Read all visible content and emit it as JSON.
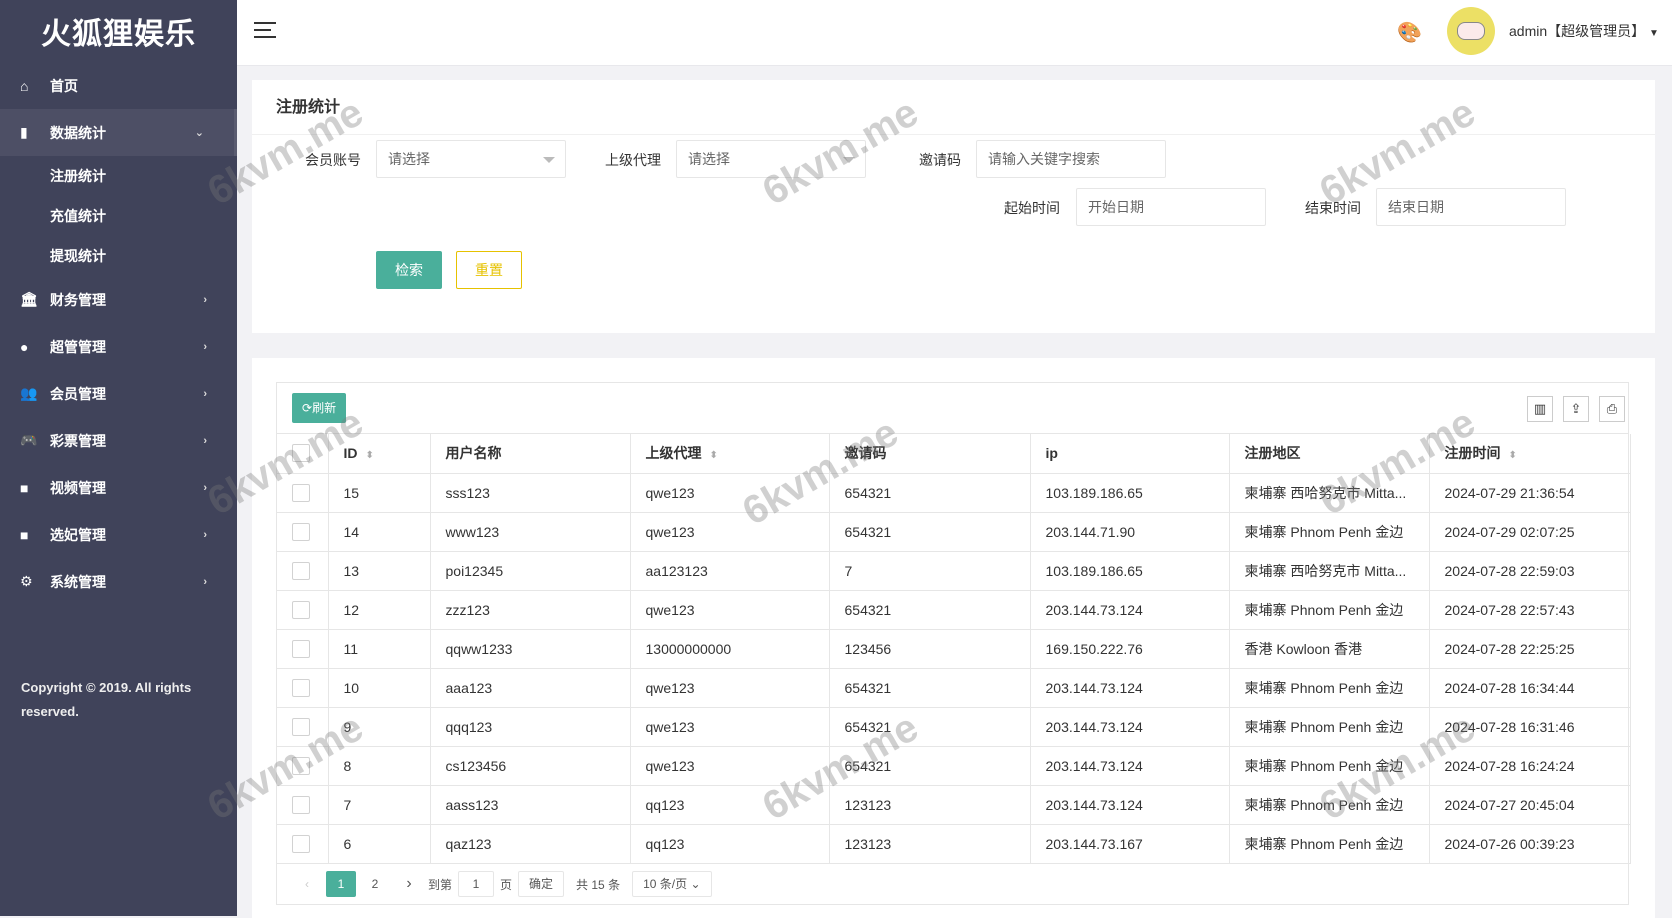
{
  "brand": "火狐狸娱乐",
  "sidebar": {
    "items": [
      {
        "label": "首页",
        "icon": "home-icon",
        "glyph": "⌂"
      },
      {
        "label": "数据统计",
        "icon": "bar-chart-icon",
        "glyph": "▮",
        "expanded": true,
        "children": [
          {
            "label": "注册统计"
          },
          {
            "label": "充值统计"
          },
          {
            "label": "提现统计"
          }
        ]
      },
      {
        "label": "财务管理",
        "icon": "bank-icon",
        "glyph": "🏛"
      },
      {
        "label": "超管管理",
        "icon": "user-icon",
        "glyph": "●"
      },
      {
        "label": "会员管理",
        "icon": "users-icon",
        "glyph": "👥"
      },
      {
        "label": "彩票管理",
        "icon": "gamepad-icon",
        "glyph": "🎮"
      },
      {
        "label": "视频管理",
        "icon": "video-icon",
        "glyph": "■"
      },
      {
        "label": "选妃管理",
        "icon": "video-icon",
        "glyph": "■"
      },
      {
        "label": "系统管理",
        "icon": "gear-icon",
        "glyph": "⚙"
      }
    ],
    "copyright": "Copyright © 2019. All rights reserved."
  },
  "header": {
    "user": "admin【超级管理员】"
  },
  "filter": {
    "title": "注册统计",
    "member_label": "会员账号",
    "member_placeholder": "请选择",
    "agent_label": "上级代理",
    "agent_placeholder": "请选择",
    "invite_label": "邀请码",
    "invite_placeholder": "请输入关键字搜索",
    "start_label": "起始时间",
    "start_placeholder": "开始日期",
    "end_label": "结束时间",
    "end_placeholder": "结束日期",
    "search": "检索",
    "reset": "重置"
  },
  "table": {
    "refresh": "刷新",
    "columns": [
      "ID",
      "用户名称",
      "上级代理",
      "邀请码",
      "ip",
      "注册地区",
      "注册时间"
    ],
    "rows": [
      [
        "15",
        "sss123",
        "qwe123",
        "654321",
        "103.189.186.65",
        "柬埔寨 西哈努克市 Mitta...",
        "2024-07-29 21:36:54"
      ],
      [
        "14",
        "www123",
        "qwe123",
        "654321",
        "203.144.71.90",
        "柬埔寨 Phnom Penh 金边",
        "2024-07-29 02:07:25"
      ],
      [
        "13",
        "poi12345",
        "aa123123",
        "7",
        "103.189.186.65",
        "柬埔寨 西哈努克市 Mitta...",
        "2024-07-28 22:59:03"
      ],
      [
        "12",
        "zzz123",
        "qwe123",
        "654321",
        "203.144.73.124",
        "柬埔寨 Phnom Penh 金边",
        "2024-07-28 22:57:43"
      ],
      [
        "11",
        "qqww1233",
        "13000000000",
        "123456",
        "169.150.222.76",
        "香港 Kowloon 香港",
        "2024-07-28 22:25:25"
      ],
      [
        "10",
        "aaa123",
        "qwe123",
        "654321",
        "203.144.73.124",
        "柬埔寨 Phnom Penh 金边",
        "2024-07-28 16:34:44"
      ],
      [
        "9",
        "qqq123",
        "qwe123",
        "654321",
        "203.144.73.124",
        "柬埔寨 Phnom Penh 金边",
        "2024-07-28 16:31:46"
      ],
      [
        "8",
        "cs123456",
        "qwe123",
        "654321",
        "203.144.73.124",
        "柬埔寨 Phnom Penh 金边",
        "2024-07-28 16:24:24"
      ],
      [
        "7",
        "aass123",
        "qq123",
        "123123",
        "203.144.73.124",
        "柬埔寨 Phnom Penh 金边",
        "2024-07-27 20:45:04"
      ],
      [
        "6",
        "qaz123",
        "qq123",
        "123123",
        "203.144.73.167",
        "柬埔寨 Phnom Penh 金边",
        "2024-07-26 00:39:23"
      ]
    ]
  },
  "pagination": {
    "pages": [
      "1",
      "2"
    ],
    "current": "1",
    "goto_label": "到第",
    "goto_value": "1",
    "page_unit": "页",
    "confirm": "确定",
    "total": "共 15 条",
    "page_size": "10 条/页"
  },
  "watermark": "6kvm.me",
  "colors": {
    "sidebar": "#40435a",
    "primary": "#4aaf9b",
    "warning": "#e6c200"
  }
}
